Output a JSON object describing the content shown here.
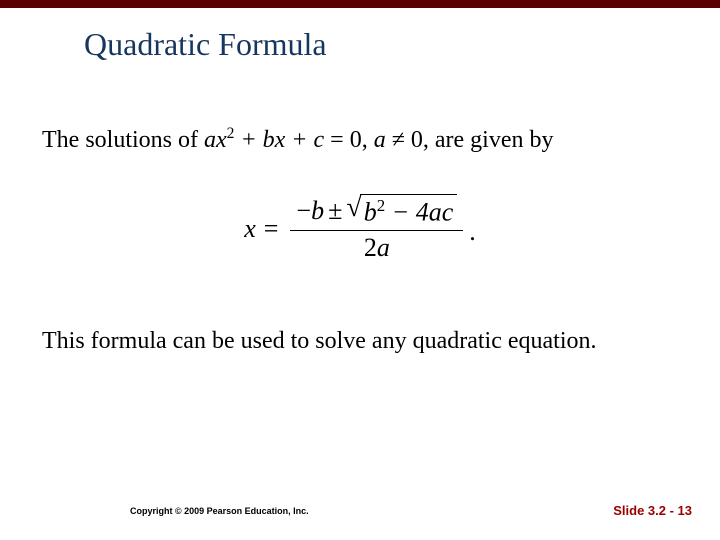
{
  "top_bar_color": "#5a0000",
  "title": "Quadratic Formula",
  "title_color": "#17365d",
  "title_fontsize": 32,
  "body_fontsize": 24,
  "text_color": "#000000",
  "background_color": "#ffffff",
  "paragraph1": {
    "prefix": "The solutions of ",
    "equation": {
      "ax2": "ax",
      "exp": "2",
      "plus_bx": " + bx + c",
      "eq_zero": " = 0, ",
      "a": "a",
      "neq": " ≠ 0, "
    },
    "suffix": "are given by"
  },
  "formula": {
    "x": "x",
    "eq": "=",
    "neg_b": "−b",
    "pm": "±",
    "surd": "√",
    "b": "b",
    "sq": "2",
    "minus_4ac": " − 4ac",
    "denom_2a": "2a",
    "period": "."
  },
  "paragraph2": "This formula can be used to solve any quadratic equation.",
  "footer": {
    "copyright": "Copyright © 2009 Pearson Education, Inc.",
    "slide_label": "Slide 3.2 - 13",
    "slide_color": "#9b0000"
  }
}
